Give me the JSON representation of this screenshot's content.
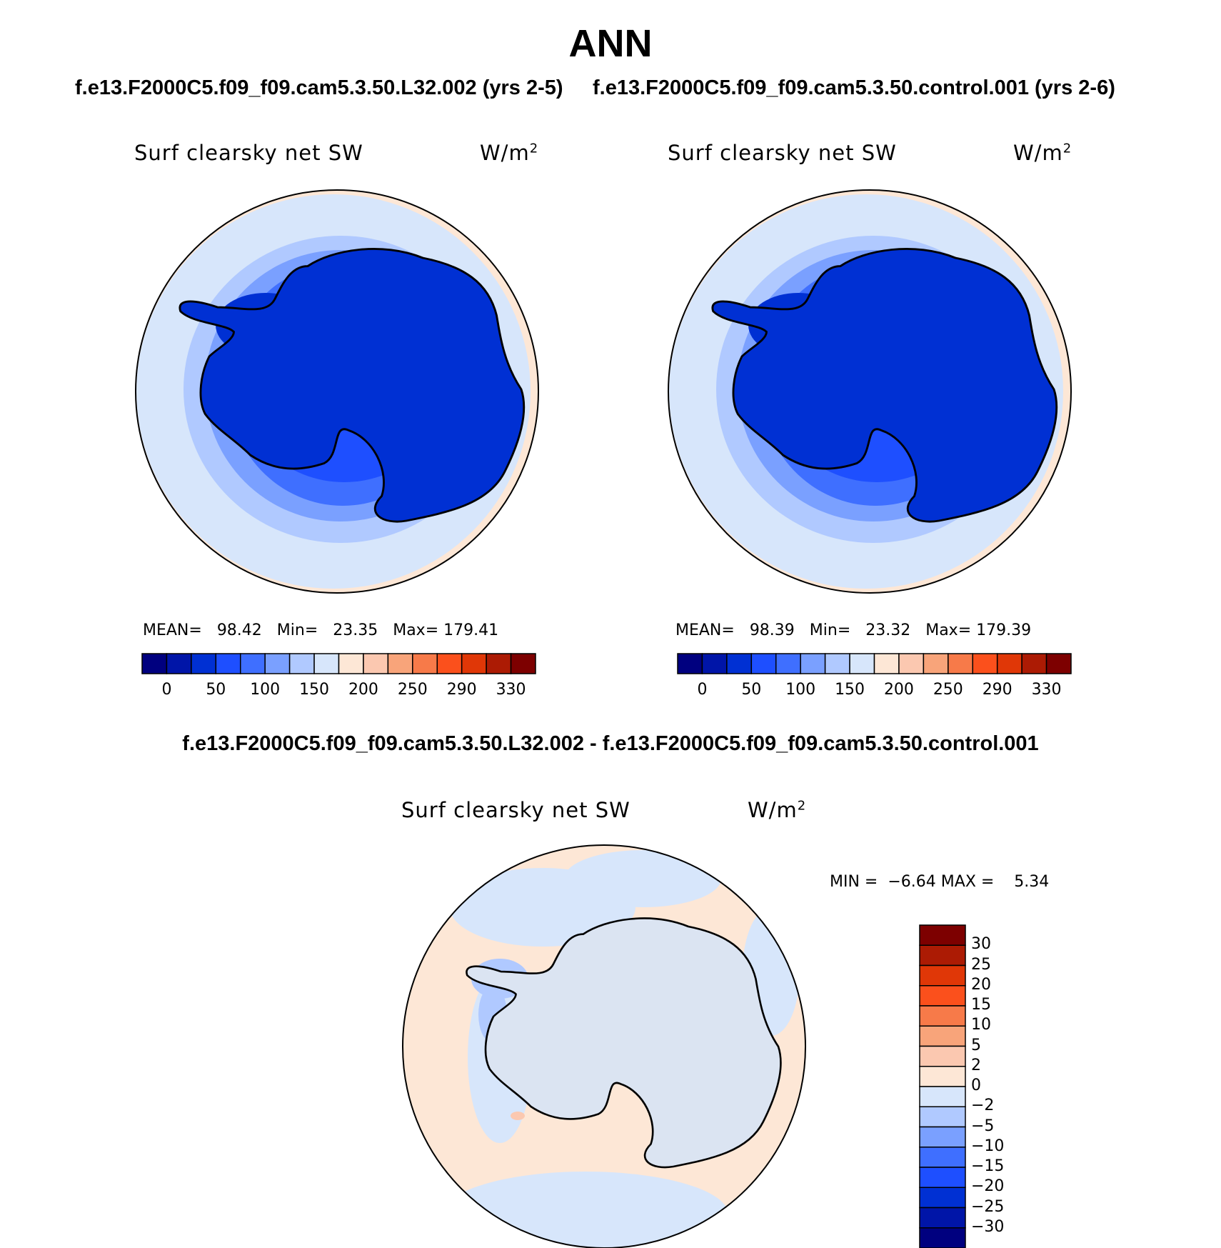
{
  "title": "ANN",
  "colors": {
    "ramp": [
      "#00007f",
      "#0015a8",
      "#0030d3",
      "#1e4fff",
      "#3f6fff",
      "#7aa0ff",
      "#b0c9ff",
      "#d7e6fb",
      "#fde7d6",
      "#fbc8b0",
      "#f8a47a",
      "#f77a49",
      "#fb501c",
      "#e03707",
      "#ac1b04",
      "#7d0000"
    ],
    "coastline": "#000000"
  },
  "panels": [
    {
      "case_title": "f.e13.F2000C5.f09_f09.cam5.3.50.L32.002 (yrs 2-5)",
      "label": "Surf clearsky net SW",
      "units": "W/m",
      "units_sup": "2",
      "mean_label": "MEAN=",
      "mean": "98.42",
      "min_label": "Min=",
      "min": "23.35",
      "max_label": "Max=",
      "max": "179.41",
      "ticks": [
        "0",
        "50",
        "100",
        "150",
        "200",
        "250",
        "290",
        "330"
      ]
    },
    {
      "case_title": "f.e13.F2000C5.f09_f09.cam5.3.50.control.001 (yrs 2-6)",
      "label": "Surf clearsky net SW",
      "units": "W/m",
      "units_sup": "2",
      "mean_label": "MEAN=",
      "mean": "98.39",
      "min_label": "Min=",
      "min": "23.32",
      "max_label": "Max=",
      "max": "179.39",
      "ticks": [
        "0",
        "50",
        "100",
        "150",
        "200",
        "250",
        "290",
        "330"
      ]
    }
  ],
  "difference": {
    "title": "f.e13.F2000C5.f09_f09.cam5.3.50.L32.002 - f.e13.F2000C5.f09_f09.cam5.3.50.control.001",
    "label": "Surf clearsky net SW",
    "units": "W/m",
    "units_sup": "2",
    "min_label": "MIN =",
    "min": "−6.64",
    "max_label": "MAX =",
    "max": "5.34",
    "ticks": [
      "30",
      "25",
      "20",
      "15",
      "10",
      "5",
      "2",
      "0",
      "−2",
      "−5",
      "−10",
      "−15",
      "−20",
      "−25",
      "−30"
    ],
    "colors": [
      "#7d0000",
      "#ac1b04",
      "#e03707",
      "#fb501c",
      "#f77a49",
      "#f8a47a",
      "#fbc8b0",
      "#fde7d6",
      "#d7e6fb",
      "#b0c9ff",
      "#7aa0ff",
      "#3f6fff",
      "#1e4fff",
      "#0030d3",
      "#0015a8",
      "#00007f"
    ]
  }
}
